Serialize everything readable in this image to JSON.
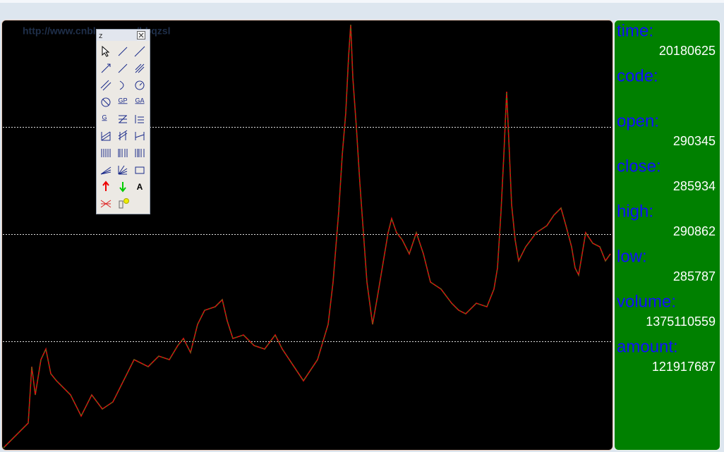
{
  "watermark": "http://www.cnblogs.com/bbqzsl",
  "toolbar": {
    "title": "z",
    "text_icons": [
      "GP",
      "GA",
      "G",
      "A"
    ]
  },
  "panel": [
    {
      "label": "time:",
      "value": "20180625"
    },
    {
      "label": "code:"
    },
    {
      "label": "open:",
      "value": 290345
    },
    {
      "label": "close:",
      "value": 285934
    },
    {
      "label": "high:",
      "value": 290862
    },
    {
      "label": "low:",
      "value": 285787
    },
    {
      "label": "volume:",
      "value": 1375110559
    },
    {
      "label": "amount:",
      "value": 121917687
    }
  ]
}
